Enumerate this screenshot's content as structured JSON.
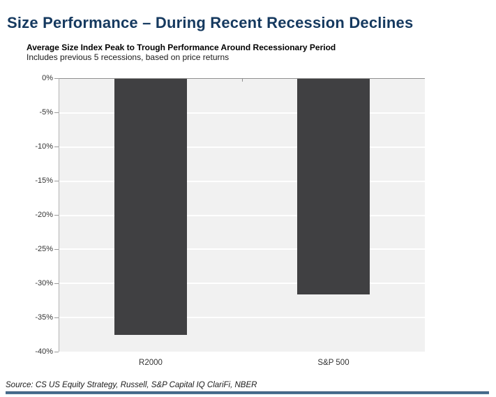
{
  "header": {
    "title": "Size Performance – During Recent Recession Declines"
  },
  "chart_data": {
    "type": "bar",
    "title": "Average Size Index Peak to Trough Performance Around Recessionary Period",
    "subtitle": "Includes previous 5 recessions, based on price returns",
    "categories": [
      "R2000",
      "S&P 500"
    ],
    "values": [
      -37.5,
      -31.6
    ],
    "unit": "%",
    "ylim": [
      -40,
      0
    ],
    "ytick_step": 5,
    "yticks": [
      "0%",
      "-5%",
      "-10%",
      "-15%",
      "-20%",
      "-25%",
      "-30%",
      "-35%",
      "-40%"
    ],
    "legend": "none",
    "grid": "horizontal",
    "bar_color": "#404042",
    "plot_background": "#f1f1f1",
    "gridline_color": "#ffffff"
  },
  "footer": {
    "source": "Source: CS US Equity Strategy, Russell, S&P Capital IQ ClariFi, NBER"
  },
  "colors": {
    "title_navy": "#15395f",
    "rule_blue": "#4c7191"
  }
}
